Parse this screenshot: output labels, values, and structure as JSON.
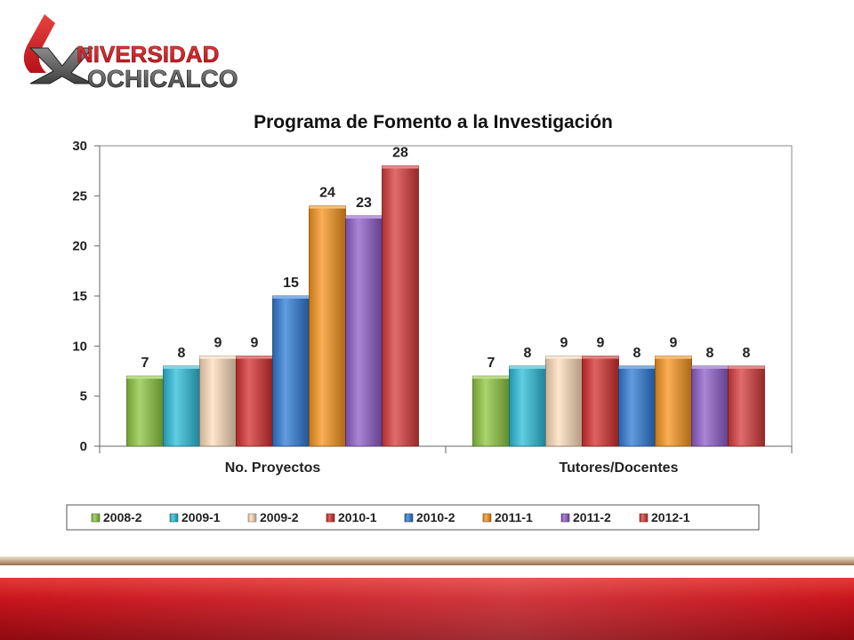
{
  "logo": {
    "line1": "NIVERSIDAD",
    "line2": "OCHICALCO",
    "u_letter": "",
    "x_letter": "X"
  },
  "chart_data": {
    "type": "bar",
    "title": "Programa de Fomento a la Investigación",
    "xlabel": "",
    "ylabel": "",
    "ylim": [
      0,
      30
    ],
    "yticks": [
      0,
      5,
      10,
      15,
      20,
      25,
      30
    ],
    "categories": [
      "No. Proyectos",
      "Tutores/Docentes"
    ],
    "series": [
      {
        "name": "2008-2",
        "values": [
          7,
          7
        ],
        "color": "#8dc63f"
      },
      {
        "name": "2009-1",
        "values": [
          8,
          8
        ],
        "color": "#2bbcd8"
      },
      {
        "name": "2009-2",
        "values": [
          9,
          9
        ],
        "color": "#fddcbb"
      },
      {
        "name": "2010-1",
        "values": [
          9,
          9
        ],
        "color": "#d42e2e"
      },
      {
        "name": "2010-2",
        "values": [
          15,
          8
        ],
        "color": "#2e7ad6"
      },
      {
        "name": "2011-1",
        "values": [
          24,
          9
        ],
        "color": "#f7941d"
      },
      {
        "name": "2011-2",
        "values": [
          23,
          8
        ],
        "color": "#8e5cc8"
      },
      {
        "name": "2012-1",
        "values": [
          28,
          8
        ],
        "color": "#d73b3b"
      }
    ],
    "grid": false,
    "legend_position": "bottom"
  },
  "colors": {
    "footer_red": "#c8141c",
    "footer_tan": "#c9a98a",
    "logo_red": "#d21f26",
    "logo_gray": "#555555"
  }
}
